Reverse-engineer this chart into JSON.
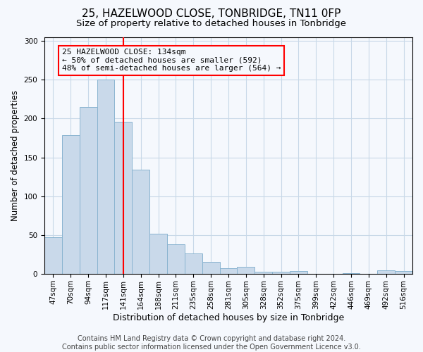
{
  "title": "25, HAZELWOOD CLOSE, TONBRIDGE, TN11 0FP",
  "subtitle": "Size of property relative to detached houses in Tonbridge",
  "xlabel": "Distribution of detached houses by size in Tonbridge",
  "ylabel": "Number of detached properties",
  "footer_line1": "Contains HM Land Registry data © Crown copyright and database right 2024.",
  "footer_line2": "Contains public sector information licensed under the Open Government Licence v3.0.",
  "bar_labels": [
    "47sqm",
    "70sqm",
    "94sqm",
    "117sqm",
    "141sqm",
    "164sqm",
    "188sqm",
    "211sqm",
    "235sqm",
    "258sqm",
    "281sqm",
    "305sqm",
    "328sqm",
    "352sqm",
    "375sqm",
    "399sqm",
    "422sqm",
    "446sqm",
    "469sqm",
    "492sqm",
    "516sqm"
  ],
  "bar_values": [
    47,
    179,
    215,
    250,
    196,
    134,
    52,
    38,
    26,
    16,
    7,
    9,
    3,
    3,
    4,
    0,
    0,
    1,
    0,
    5,
    4
  ],
  "bar_color": "#c9d9ea",
  "bar_edge_color": "#8ab4d0",
  "vline_x_index": 4,
  "vline_color": "red",
  "annotation_box_text": "25 HAZELWOOD CLOSE: 134sqm\n← 50% of detached houses are smaller (592)\n48% of semi-detached houses are larger (564) →",
  "ylim": [
    0,
    305
  ],
  "yticks": [
    0,
    50,
    100,
    150,
    200,
    250,
    300
  ],
  "background_color": "#f5f8fd",
  "grid_color": "#c8d8e8",
  "title_fontsize": 11,
  "subtitle_fontsize": 9.5,
  "xlabel_fontsize": 9,
  "ylabel_fontsize": 8.5,
  "tick_fontsize": 7.5,
  "annotation_fontsize": 8,
  "footer_fontsize": 7
}
